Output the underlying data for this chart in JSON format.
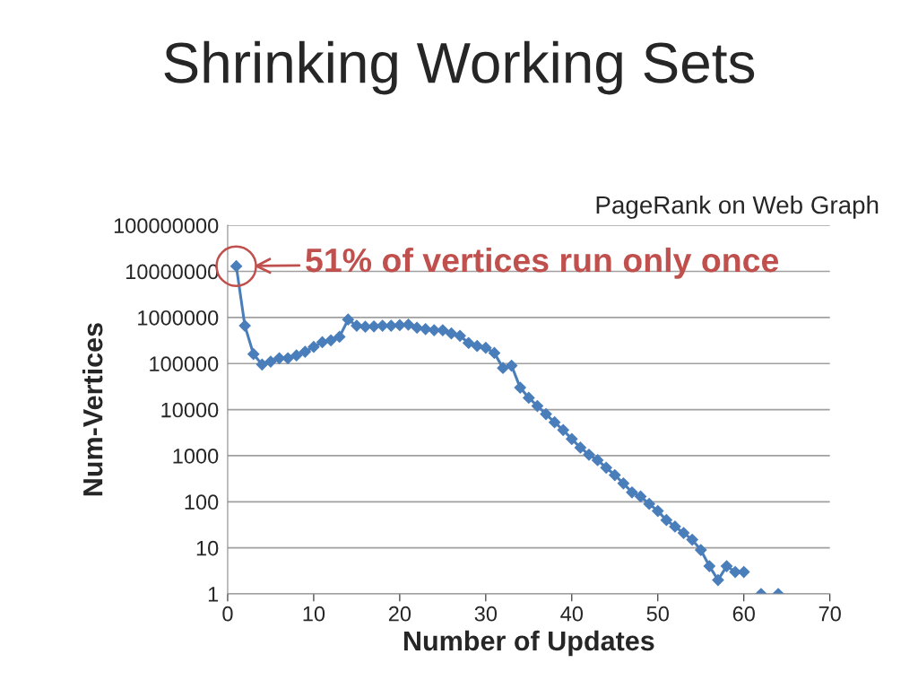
{
  "chart_data": {
    "type": "line",
    "title": "Shrinking Working Sets",
    "subtitle": "PageRank on Web Graph",
    "xlabel": "Number of Updates",
    "ylabel": "Num-Vertices",
    "x": [
      1,
      2,
      3,
      4,
      5,
      6,
      7,
      8,
      9,
      10,
      11,
      12,
      13,
      14,
      15,
      16,
      17,
      18,
      19,
      20,
      21,
      22,
      23,
      24,
      25,
      26,
      27,
      28,
      29,
      30,
      31,
      32,
      33,
      34,
      35,
      36,
      37,
      38,
      39,
      40,
      41,
      42,
      43,
      44,
      45,
      46,
      47,
      48,
      49,
      50,
      51,
      52,
      53,
      54,
      55,
      56,
      57,
      58,
      59,
      60,
      61,
      62,
      63,
      64
    ],
    "series": [
      {
        "color": "#4a7ebb",
        "values": [
          13000000,
          660000,
          160000,
          95000,
          110000,
          130000,
          130000,
          150000,
          180000,
          230000,
          290000,
          320000,
          380000,
          900000,
          660000,
          630000,
          640000,
          660000,
          660000,
          680000,
          700000,
          600000,
          560000,
          530000,
          530000,
          450000,
          400000,
          280000,
          240000,
          220000,
          170000,
          80000,
          90000,
          30000,
          18000,
          12000,
          8000,
          5300,
          3600,
          2300,
          1500,
          1050,
          800,
          550,
          380,
          250,
          160,
          130,
          90,
          63,
          40,
          29,
          21,
          15,
          9,
          4,
          2,
          4,
          3,
          3,
          null,
          1,
          null,
          1
        ]
      }
    ],
    "log": "y",
    "xlim": [
      0,
      70
    ],
    "xticks": [
      0,
      10,
      20,
      30,
      40,
      50,
      60,
      70
    ],
    "ylim": [
      1,
      100000000
    ],
    "yticks": [
      1,
      10,
      100,
      1000,
      10000,
      100000,
      1000000,
      10000000,
      100000000
    ],
    "grid": "y",
    "marker": "diamond",
    "line_style": "solid",
    "annotations": [
      {
        "text": "51% of vertices run only once",
        "x": 1,
        "y": 13000000
      }
    ]
  }
}
